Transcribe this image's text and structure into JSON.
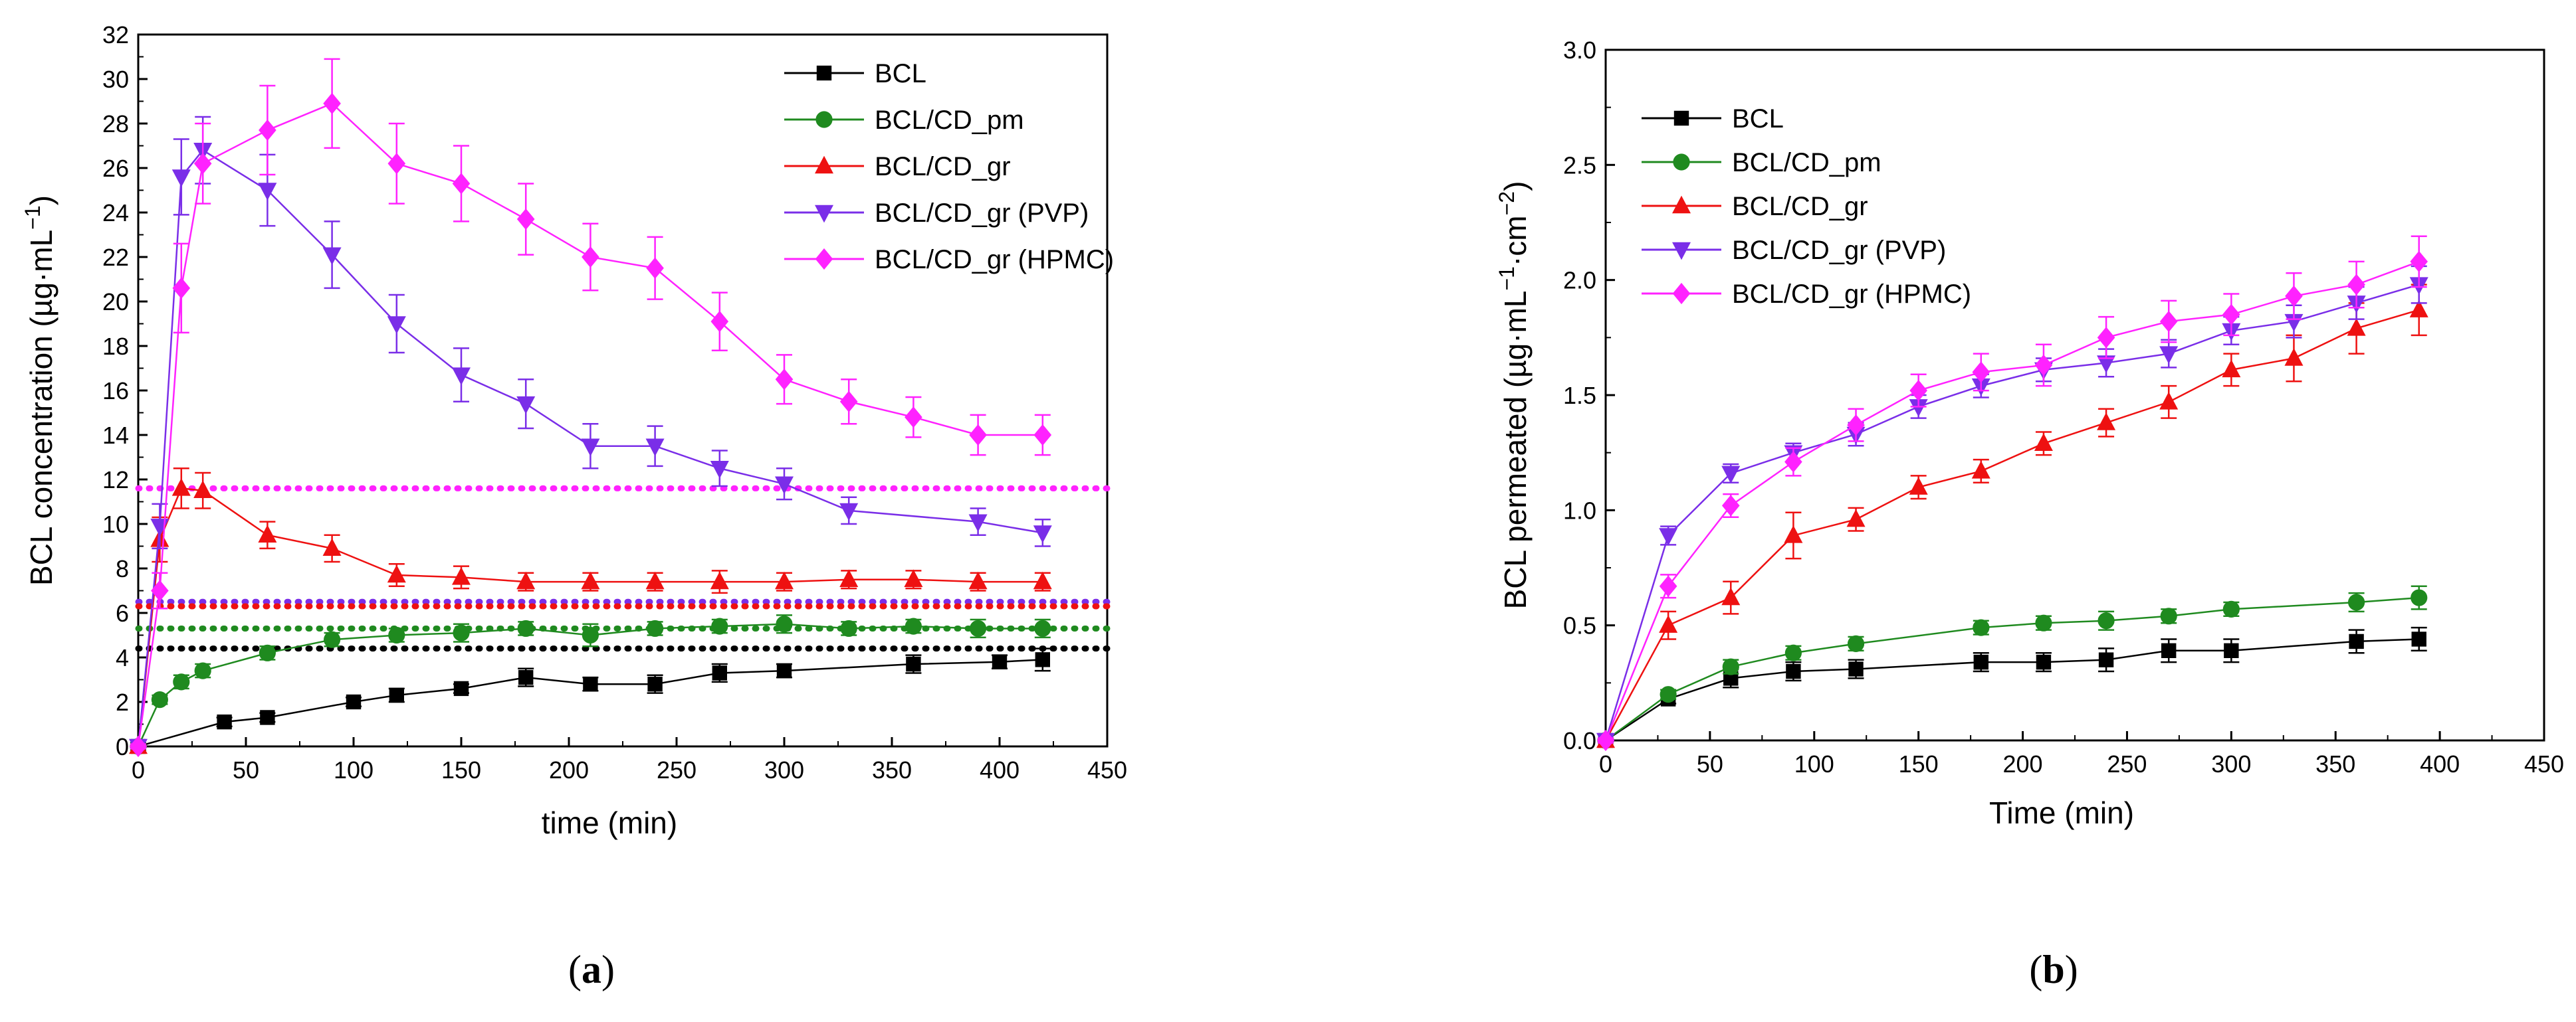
{
  "chart_data": [
    {
      "id": "a",
      "type": "line",
      "panel_label": "a",
      "xlabel": "time (min)",
      "ylabel_main": "BCL concentration (µg·mL",
      "ylabel_sup": "−1",
      "ylabel_end": ")",
      "xlim": [
        0,
        450
      ],
      "ylim": [
        0,
        32
      ],
      "xticks": [
        0,
        50,
        100,
        150,
        200,
        250,
        300,
        350,
        400,
        450
      ],
      "yticks": [
        0,
        2,
        4,
        6,
        8,
        10,
        12,
        14,
        16,
        18,
        20,
        22,
        24,
        26,
        28,
        30,
        32
      ],
      "legend_position": "top-right",
      "series": [
        {
          "name": "BCL",
          "color": "#000000",
          "marker": "square",
          "x": [
            0,
            40,
            60,
            100,
            120,
            150,
            180,
            210,
            240,
            270,
            300,
            360,
            400,
            420
          ],
          "y": [
            0,
            1.1,
            1.3,
            2.0,
            2.3,
            2.6,
            3.1,
            2.8,
            2.8,
            3.3,
            3.4,
            3.7,
            3.8,
            3.9
          ],
          "err": [
            0.15,
            0.2,
            0.2,
            0.2,
            0.3,
            0.2,
            0.4,
            0.3,
            0.4,
            0.4,
            0.3,
            0.4,
            0.3,
            0.5
          ]
        },
        {
          "name": "BCL/CD_pm",
          "color": "#1f8a1f",
          "marker": "circle",
          "x": [
            0,
            10,
            20,
            30,
            60,
            90,
            120,
            150,
            180,
            210,
            240,
            270,
            300,
            330,
            360,
            390,
            420
          ],
          "y": [
            0,
            2.1,
            2.9,
            3.4,
            4.2,
            4.8,
            5.0,
            5.1,
            5.3,
            5.0,
            5.3,
            5.4,
            5.5,
            5.3,
            5.4,
            5.3,
            5.3
          ],
          "err": [
            0.1,
            0.2,
            0.3,
            0.3,
            0.3,
            0.3,
            0.3,
            0.4,
            0.3,
            0.5,
            0.3,
            0.3,
            0.4,
            0.3,
            0.3,
            0.4,
            0.4
          ]
        },
        {
          "name": "BCL/CD_gr",
          "color": "#ee1111",
          "marker": "triangle-up",
          "x": [
            0,
            10,
            20,
            30,
            60,
            90,
            120,
            150,
            180,
            210,
            240,
            270,
            300,
            330,
            360,
            390,
            420
          ],
          "y": [
            0,
            9.3,
            11.6,
            11.5,
            9.5,
            8.9,
            7.7,
            7.6,
            7.4,
            7.4,
            7.4,
            7.4,
            7.4,
            7.5,
            7.5,
            7.4,
            7.4
          ],
          "err": [
            0.1,
            1.0,
            0.9,
            0.8,
            0.6,
            0.6,
            0.5,
            0.5,
            0.4,
            0.4,
            0.4,
            0.5,
            0.4,
            0.4,
            0.4,
            0.4,
            0.4
          ]
        },
        {
          "name": "BCL/CD_gr (PVP)",
          "color": "#7a2ee8",
          "marker": "triangle-down",
          "x": [
            0,
            10,
            20,
            30,
            60,
            90,
            120,
            150,
            180,
            210,
            240,
            270,
            300,
            330,
            390,
            420
          ],
          "y": [
            0,
            9.9,
            25.6,
            26.8,
            25.0,
            22.1,
            19.0,
            16.7,
            15.4,
            13.5,
            13.5,
            12.5,
            11.8,
            10.6,
            10.1,
            9.6
          ],
          "err": [
            0.1,
            1.0,
            1.7,
            1.5,
            1.6,
            1.5,
            1.3,
            1.2,
            1.1,
            1.0,
            0.9,
            0.8,
            0.7,
            0.6,
            0.6,
            0.6
          ]
        },
        {
          "name": "BCL/CD_gr (HPMC)",
          "color": "#ff22ff",
          "marker": "diamond",
          "x": [
            0,
            10,
            20,
            30,
            60,
            90,
            120,
            150,
            180,
            210,
            240,
            270,
            300,
            330,
            360,
            390,
            420
          ],
          "y": [
            0,
            7.0,
            20.6,
            26.2,
            27.7,
            28.9,
            26.2,
            25.3,
            23.7,
            22.0,
            21.5,
            19.1,
            16.5,
            15.5,
            14.8,
            14.0,
            14.0
          ],
          "err": [
            0.1,
            0.8,
            2.0,
            1.8,
            2.0,
            2.0,
            1.8,
            1.7,
            1.6,
            1.5,
            1.4,
            1.3,
            1.1,
            1.0,
            0.9,
            0.9,
            0.9
          ]
        }
      ],
      "reference_lines": [
        {
          "color": "#ff22ff",
          "y": 11.6
        },
        {
          "color": "#7a2ee8",
          "y": 6.5
        },
        {
          "color": "#ee1111",
          "y": 6.3
        },
        {
          "color": "#1f8a1f",
          "y": 5.3
        },
        {
          "color": "#000000",
          "y": 4.4
        }
      ]
    },
    {
      "id": "b",
      "type": "line",
      "panel_label": "b",
      "xlabel": "Time (min)",
      "ylabel_main": "BCL permeated (µg·mL",
      "ylabel_sup": "−1",
      "ylabel_mid": "·cm",
      "ylabel_sup2": "−2",
      "ylabel_end": ")",
      "xlim": [
        0,
        450
      ],
      "ylim": [
        0,
        3.0
      ],
      "xticks": [
        0,
        50,
        100,
        150,
        200,
        250,
        300,
        350,
        400,
        450
      ],
      "yticks": [
        "0.0",
        "0.5",
        "1.0",
        "1.5",
        "2.0",
        "2.5",
        "3.0"
      ],
      "legend_position": "top-left",
      "series": [
        {
          "name": "BCL",
          "color": "#000000",
          "marker": "square",
          "x": [
            0,
            30,
            60,
            90,
            120,
            180,
            210,
            240,
            270,
            300,
            360,
            390
          ],
          "y": [
            0,
            0.18,
            0.27,
            0.3,
            0.31,
            0.34,
            0.34,
            0.35,
            0.39,
            0.39,
            0.43,
            0.44
          ],
          "err": [
            0.01,
            0.02,
            0.04,
            0.04,
            0.04,
            0.04,
            0.04,
            0.05,
            0.05,
            0.05,
            0.05,
            0.05
          ]
        },
        {
          "name": "BCL/CD_pm",
          "color": "#1f8a1f",
          "marker": "circle",
          "x": [
            0,
            30,
            60,
            90,
            120,
            180,
            210,
            240,
            270,
            300,
            360,
            390
          ],
          "y": [
            0,
            0.2,
            0.32,
            0.38,
            0.42,
            0.49,
            0.51,
            0.52,
            0.54,
            0.57,
            0.6,
            0.62
          ],
          "err": [
            0.01,
            0.02,
            0.03,
            0.03,
            0.03,
            0.03,
            0.03,
            0.04,
            0.03,
            0.03,
            0.04,
            0.05
          ]
        },
        {
          "name": "BCL/CD_gr",
          "color": "#ee1111",
          "marker": "triangle-up",
          "x": [
            0,
            30,
            60,
            90,
            120,
            150,
            180,
            210,
            240,
            270,
            300,
            330,
            360,
            390
          ],
          "y": [
            0,
            0.5,
            0.62,
            0.89,
            0.96,
            1.1,
            1.17,
            1.29,
            1.38,
            1.47,
            1.61,
            1.66,
            1.79,
            1.87
          ],
          "err": [
            0.01,
            0.06,
            0.07,
            0.1,
            0.05,
            0.05,
            0.05,
            0.05,
            0.06,
            0.07,
            0.07,
            0.1,
            0.11,
            0.11
          ]
        },
        {
          "name": "BCL/CD_gr (PVP)",
          "color": "#7a2ee8",
          "marker": "triangle-down",
          "x": [
            0,
            30,
            60,
            90,
            120,
            150,
            180,
            210,
            240,
            270,
            300,
            330,
            360,
            390
          ],
          "y": [
            0,
            0.89,
            1.16,
            1.25,
            1.33,
            1.45,
            1.54,
            1.61,
            1.64,
            1.68,
            1.78,
            1.82,
            1.9,
            1.98
          ],
          "err": [
            0.01,
            0.04,
            0.04,
            0.04,
            0.05,
            0.05,
            0.05,
            0.05,
            0.06,
            0.06,
            0.06,
            0.07,
            0.07,
            0.08
          ]
        },
        {
          "name": "BCL/CD_gr (HPMC)",
          "color": "#ff22ff",
          "marker": "diamond",
          "x": [
            0,
            30,
            60,
            90,
            120,
            150,
            180,
            210,
            240,
            270,
            300,
            330,
            360,
            390
          ],
          "y": [
            0,
            0.67,
            1.02,
            1.21,
            1.37,
            1.52,
            1.6,
            1.63,
            1.75,
            1.82,
            1.85,
            1.93,
            1.98,
            2.08
          ],
          "err": [
            0.01,
            0.05,
            0.05,
            0.06,
            0.07,
            0.07,
            0.08,
            0.09,
            0.09,
            0.09,
            0.09,
            0.1,
            0.1,
            0.11
          ]
        }
      ]
    }
  ]
}
